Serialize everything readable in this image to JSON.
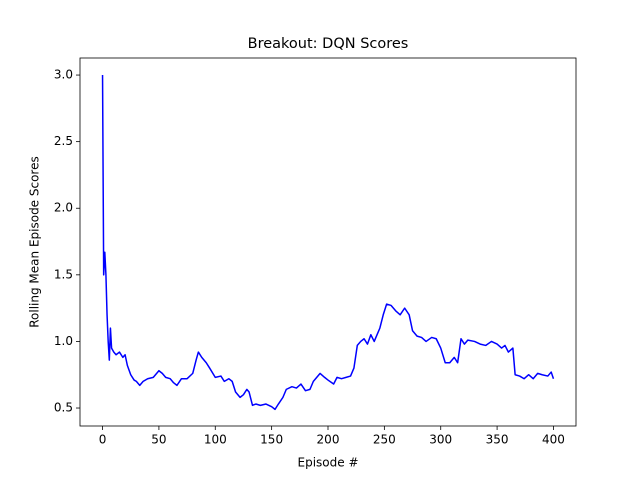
{
  "chart_data": {
    "type": "line",
    "title": "Breakout: DQN Scores",
    "x_label": "Episode #",
    "y_label": "Rolling Mean Episode Scores",
    "x": [
      0,
      1,
      2,
      3,
      4,
      5,
      6,
      7,
      8,
      10,
      12,
      15,
      18,
      20,
      22,
      25,
      28,
      30,
      33,
      36,
      40,
      45,
      48,
      50,
      53,
      56,
      60,
      63,
      66,
      70,
      75,
      80,
      83,
      85,
      88,
      92,
      95,
      100,
      105,
      108,
      112,
      115,
      118,
      122,
      125,
      128,
      130,
      133,
      136,
      140,
      145,
      150,
      153,
      156,
      160,
      163,
      168,
      172,
      176,
      180,
      184,
      187,
      190,
      193,
      197,
      200,
      205,
      208,
      212,
      216,
      220,
      223,
      226,
      229,
      232,
      235,
      238,
      241,
      243,
      246,
      249,
      252,
      256,
      260,
      264,
      268,
      272,
      275,
      279,
      283,
      287,
      292,
      296,
      300,
      304,
      308,
      312,
      315,
      318,
      321,
      324,
      330,
      335,
      340,
      345,
      350,
      354,
      357,
      360,
      364,
      366,
      370,
      374,
      378,
      382,
      386,
      390,
      395,
      398,
      400
    ],
    "series": [
      {
        "name": "Scores",
        "color": "#0000ff",
        "values": [
          3.0,
          1.5,
          1.67,
          1.5,
          1.2,
          1.0,
          0.86,
          1.1,
          0.95,
          0.92,
          0.9,
          0.92,
          0.88,
          0.9,
          0.82,
          0.75,
          0.71,
          0.7,
          0.67,
          0.7,
          0.72,
          0.73,
          0.76,
          0.78,
          0.76,
          0.73,
          0.72,
          0.69,
          0.67,
          0.72,
          0.72,
          0.76,
          0.86,
          0.92,
          0.88,
          0.84,
          0.8,
          0.73,
          0.74,
          0.7,
          0.72,
          0.7,
          0.62,
          0.58,
          0.6,
          0.64,
          0.62,
          0.52,
          0.53,
          0.52,
          0.53,
          0.51,
          0.49,
          0.53,
          0.58,
          0.64,
          0.66,
          0.65,
          0.68,
          0.63,
          0.64,
          0.7,
          0.73,
          0.76,
          0.73,
          0.71,
          0.68,
          0.73,
          0.72,
          0.73,
          0.74,
          0.8,
          0.97,
          1.0,
          1.02,
          0.98,
          1.05,
          1.0,
          1.04,
          1.1,
          1.2,
          1.28,
          1.27,
          1.23,
          1.2,
          1.25,
          1.2,
          1.08,
          1.04,
          1.03,
          1.0,
          1.03,
          1.02,
          0.95,
          0.84,
          0.84,
          0.88,
          0.84,
          1.02,
          0.98,
          1.01,
          1.0,
          0.98,
          0.97,
          1.0,
          0.98,
          0.95,
          0.97,
          0.92,
          0.95,
          0.75,
          0.74,
          0.72,
          0.75,
          0.72,
          0.76,
          0.75,
          0.74,
          0.77,
          0.72
        ]
      }
    ],
    "xlim": [
      -20,
      420
    ],
    "ylim": [
      0.365,
      3.128
    ],
    "xticks": [
      0,
      50,
      100,
      150,
      200,
      250,
      300,
      350,
      400
    ],
    "yticks": [
      0.5,
      {
        "value": 1,
        "label": "1.0"
      },
      1.5,
      {
        "value": 2,
        "label": "2.0"
      },
      2.5,
      {
        "value": 3,
        "label": "3.0"
      }
    ],
    "grid": false
  }
}
